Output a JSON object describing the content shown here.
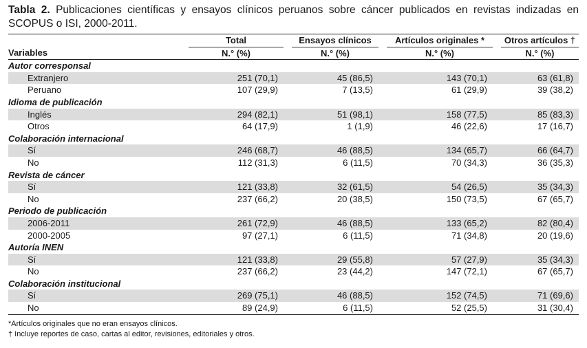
{
  "title": {
    "label": "Tabla 2.",
    "text": "Publicaciones científicas y ensayos clínicos peruanos sobre cáncer publicados en revistas indizadas en SCOPUS o ISI, 2000-2011."
  },
  "table": {
    "col_variables": "Variables",
    "col_total": "Total",
    "col_ensayos": "Ensayos clínicos",
    "col_articulos": "Artículos originales *",
    "col_otros": "Otros artículos †",
    "subheader": "N.° (%)",
    "sections": [
      {
        "name": "Autor corresponsal",
        "rows": [
          {
            "label": "Extranjero",
            "total": "251 (70,1)",
            "ensayos": "45 (86,5)",
            "articulos": "143 (70,1)",
            "otros": "63 (61,8)"
          },
          {
            "label": "Peruano",
            "total": "107 (29,9)",
            "ensayos": "7 (13,5)",
            "articulos": "61 (29,9)",
            "otros": "39 (38,2)"
          }
        ]
      },
      {
        "name": "Idioma de publicación",
        "rows": [
          {
            "label": "Inglés",
            "total": "294 (82,1)",
            "ensayos": "51 (98,1)",
            "articulos": "158 (77,5)",
            "otros": "85 (83,3)"
          },
          {
            "label": "Otros",
            "total": "64 (17,9)",
            "ensayos": "1 (1,9)",
            "articulos": "46 (22,6)",
            "otros": "17 (16,7)"
          }
        ]
      },
      {
        "name": "Colaboración internacional",
        "rows": [
          {
            "label": "Sí",
            "total": "246 (68,7)",
            "ensayos": "46 (88,5)",
            "articulos": "134 (65,7)",
            "otros": "66 (64,7)"
          },
          {
            "label": "No",
            "total": "112 (31,3)",
            "ensayos": "6 (11,5)",
            "articulos": "70 (34,3)",
            "otros": "36 (35,3)"
          }
        ]
      },
      {
        "name": "Revista de cáncer",
        "rows": [
          {
            "label": "Sí",
            "total": "121 (33,8)",
            "ensayos": "32 (61,5)",
            "articulos": "54 (26,5)",
            "otros": "35 (34,3)"
          },
          {
            "label": "No",
            "total": "237 (66,2)",
            "ensayos": "20 (38,5)",
            "articulos": "150 (73,5)",
            "otros": "67 (65,7)"
          }
        ]
      },
      {
        "name": "Periodo de publicación",
        "rows": [
          {
            "label": "2006-2011",
            "total": "261 (72,9)",
            "ensayos": "46 (88,5)",
            "articulos": "133 (65,2)",
            "otros": "82 (80,4)"
          },
          {
            "label": "2000-2005",
            "total": "97 (27,1)",
            "ensayos": "6 (11,5)",
            "articulos": "71 (34,8)",
            "otros": "20 (19,6)"
          }
        ]
      },
      {
        "name": "Autoría INEN",
        "rows": [
          {
            "label": "Sí",
            "total": "121 (33,8)",
            "ensayos": "29 (55,8)",
            "articulos": "57 (27,9)",
            "otros": "35 (34,3)"
          },
          {
            "label": "No",
            "total": "237 (66,2)",
            "ensayos": "23 (44,2)",
            "articulos": "147 (72,1)",
            "otros": "67 (65,7)"
          }
        ]
      },
      {
        "name": "Colaboración institucional",
        "rows": [
          {
            "label": "Sí",
            "total": "269 (75,1)",
            "ensayos": "46 (88,5)",
            "articulos": "152 (74,5)",
            "otros": "71 (69,6)"
          },
          {
            "label": "No",
            "total": "89 (24,9)",
            "ensayos": "6 (11,5)",
            "articulos": "52 (25,5)",
            "otros": "31 (30,4)"
          }
        ]
      }
    ]
  },
  "notes": [
    "*Artículos originales que no eran ensayos clínicos.",
    "† Incluye reportes de caso, cartas al editor, revisiones, editoriales y otros."
  ],
  "colors": {
    "shade": "#dcdcdc",
    "rule": "#222222",
    "text": "#1a1a1a"
  }
}
